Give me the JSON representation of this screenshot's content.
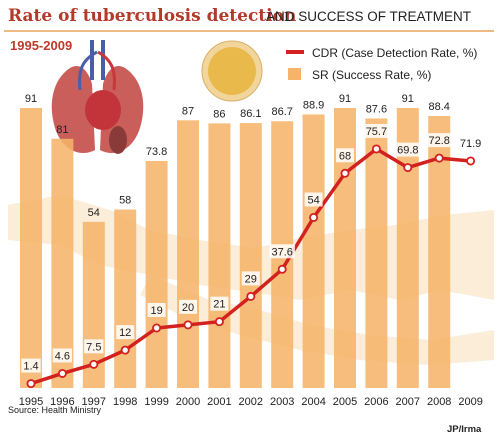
{
  "title": {
    "main": "Rate of tuberculosis detection",
    "sub": "AND SUCCESS OF TREATMENT"
  },
  "year_range": "1995-2009",
  "source": "Source: Health Ministry",
  "credit": "JP/Irma",
  "colors": {
    "bar": "#f6b46a",
    "line": "#d2211e",
    "title": "#b23a2a",
    "map": "#fbe3c2"
  },
  "chart_data": {
    "type": "bar",
    "categories": [
      "1995",
      "1996",
      "1997",
      "1998",
      "1999",
      "2000",
      "2001",
      "2002",
      "2003",
      "2004",
      "2005",
      "2006",
      "2007",
      "2008",
      "2009"
    ],
    "series": [
      {
        "name": "SR (Success Rate, %)",
        "type": "bar",
        "values": [
          91,
          81,
          54,
          58,
          73.8,
          87,
          86,
          86.1,
          86.7,
          88.9,
          91,
          87.6,
          91,
          88.4,
          null
        ],
        "labels": [
          "91",
          "81",
          "54",
          "58",
          "73.8",
          "87",
          "86",
          "86.1",
          "86.7",
          "88.9",
          "91",
          "87.6",
          "91",
          "88.4",
          ""
        ]
      },
      {
        "name": "CDR (Case Detection Rate, %)",
        "type": "line",
        "values": [
          1.4,
          4.6,
          7.5,
          12,
          19,
          20,
          21,
          29,
          37.6,
          54,
          68,
          75.7,
          69.8,
          72.8,
          71.9
        ],
        "labels": [
          "1.4",
          "4.6",
          "7.5",
          "12",
          "19",
          "20",
          "21",
          "29",
          "37.6",
          "54",
          "68",
          "75.7",
          "69.8",
          "72.8",
          "71.9"
        ]
      }
    ],
    "ylim": [
      0,
      100
    ],
    "grid": false,
    "legend_position": "top-right"
  }
}
